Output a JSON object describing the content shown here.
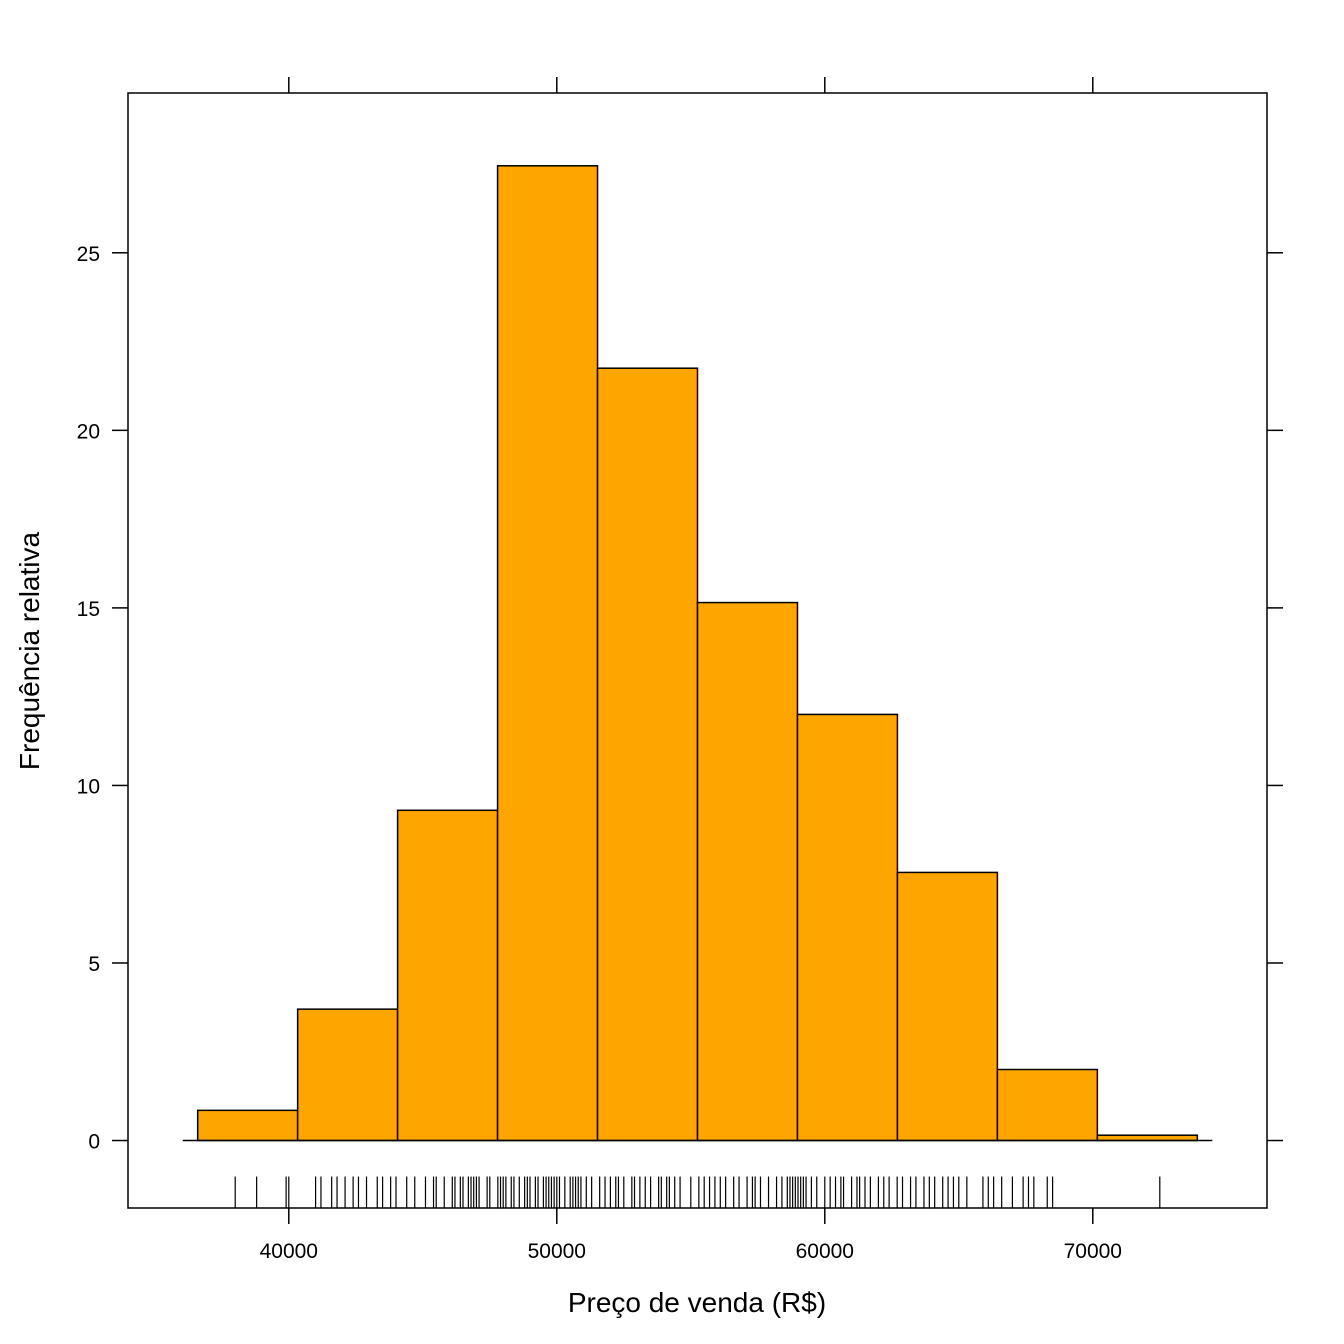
{
  "chart_data": {
    "type": "histogram",
    "title": "",
    "xlabel": "Preço de venda (R$)",
    "ylabel": "Frequência relativa",
    "xlim": [
      34000,
      76500
    ],
    "ylim": [
      -1.9,
      29.5
    ],
    "x_ticks": [
      40000,
      50000,
      60000,
      70000
    ],
    "x_tick_labels": [
      "40000",
      "50000",
      "60000",
      "70000"
    ],
    "y_ticks": [
      0,
      5,
      10,
      15,
      20,
      25
    ],
    "y_tick_labels": [
      "0",
      "5",
      "10",
      "15",
      "20",
      "25"
    ],
    "bin_edges": [
      36600,
      40330,
      44060,
      47790,
      51520,
      55250,
      58980,
      62710,
      66440,
      70170,
      73900
    ],
    "values": [
      0.85,
      3.7,
      9.3,
      27.45,
      21.75,
      15.15,
      12.0,
      7.55,
      2.0,
      0.15
    ],
    "bar_color": "#FFA500",
    "grid": false,
    "legend": "none",
    "rug": [
      38000,
      38800,
      39900,
      40000,
      41000,
      41200,
      41600,
      41800,
      42100,
      42400,
      42600,
      42900,
      43300,
      43500,
      43800,
      44000,
      44400,
      44700,
      45100,
      45400,
      45500,
      45800,
      46100,
      46200,
      46400,
      46500,
      46700,
      46800,
      46900,
      47000,
      47100,
      47400,
      47500,
      47800,
      47900,
      48000,
      48100,
      48300,
      48400,
      48600,
      48800,
      48900,
      49000,
      49200,
      49300,
      49500,
      49600,
      49700,
      49800,
      49900,
      50000,
      50100,
      50300,
      50500,
      50600,
      50700,
      50800,
      50900,
      51100,
      51300,
      51600,
      51800,
      52000,
      52200,
      52300,
      52500,
      52800,
      52900,
      53100,
      53300,
      53500,
      53800,
      53900,
      54100,
      54200,
      54400,
      54600,
      55000,
      55300,
      55500,
      55700,
      55900,
      56100,
      56300,
      56600,
      56800,
      57100,
      57300,
      57400,
      57600,
      57900,
      58200,
      58400,
      58600,
      58700,
      58800,
      58900,
      59000,
      59100,
      59200,
      59300,
      59500,
      59700,
      60000,
      60200,
      60400,
      60600,
      60700,
      61000,
      61200,
      61300,
      61500,
      61700,
      62000,
      62200,
      62400,
      62700,
      62900,
      63200,
      63400,
      63700,
      63900,
      64100,
      64400,
      64600,
      64800,
      65000,
      65300,
      65900,
      66100,
      66300,
      66600,
      67000,
      67400,
      67600,
      67800,
      68300,
      68500,
      72500
    ]
  }
}
